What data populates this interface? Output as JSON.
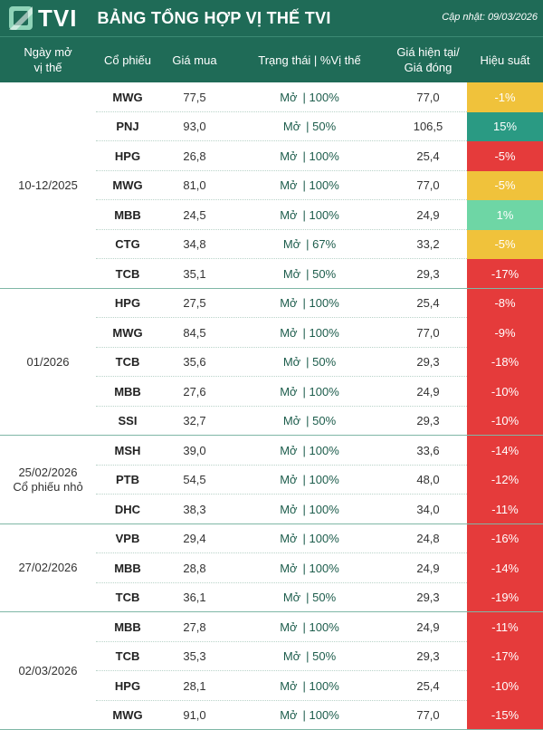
{
  "header": {
    "logo_text": "TVI",
    "title": "BẢNG TỔNG HỢP VỊ THẾ TVI",
    "updated": "Cập nhật: 09/03/2026"
  },
  "columns": {
    "date": [
      "Ngày mở",
      "vị thế"
    ],
    "ticker": "Cổ phiếu",
    "buy": "Giá mua",
    "status": "Trạng thái | %Vị thế",
    "current": [
      "Giá hiện tại/",
      "Giá đóng"
    ],
    "perf": "Hiệu suất"
  },
  "colors": {
    "header_bg": "#1f6b57",
    "red": "#e53b3b",
    "yellow": "#f0c23b",
    "teal": "#2a9a83",
    "lightgreen": "#6ed6a5"
  },
  "groups": [
    {
      "date": [
        "10-12/2025"
      ],
      "rows": [
        {
          "ticker": "MWG",
          "buy": "77,5",
          "status": "Mở",
          "pct": "| 100%",
          "current": "77,0",
          "perf": "-1%",
          "color": "yellow"
        },
        {
          "ticker": "PNJ",
          "buy": "93,0",
          "status": "Mở",
          "pct": "| 50%",
          "current": "106,5",
          "perf": "15%",
          "color": "teal"
        },
        {
          "ticker": "HPG",
          "buy": "26,8",
          "status": "Mở",
          "pct": "| 100%",
          "current": "25,4",
          "perf": "-5%",
          "color": "red"
        },
        {
          "ticker": "MWG",
          "buy": "81,0",
          "status": "Mở",
          "pct": "| 100%",
          "current": "77,0",
          "perf": "-5%",
          "color": "yellow"
        },
        {
          "ticker": "MBB",
          "buy": "24,5",
          "status": "Mở",
          "pct": "| 100%",
          "current": "24,9",
          "perf": "1%",
          "color": "lightgreen"
        },
        {
          "ticker": "CTG",
          "buy": "34,8",
          "status": "Mở",
          "pct": "| 67%",
          "current": "33,2",
          "perf": "-5%",
          "color": "yellow"
        },
        {
          "ticker": "TCB",
          "buy": "35,1",
          "status": "Mở",
          "pct": "| 50%",
          "current": "29,3",
          "perf": "-17%",
          "color": "red"
        }
      ]
    },
    {
      "date": [
        "01/2026"
      ],
      "rows": [
        {
          "ticker": "HPG",
          "buy": "27,5",
          "status": "Mở",
          "pct": "| 100%",
          "current": "25,4",
          "perf": "-8%",
          "color": "red"
        },
        {
          "ticker": "MWG",
          "buy": "84,5",
          "status": "Mở",
          "pct": "| 100%",
          "current": "77,0",
          "perf": "-9%",
          "color": "red"
        },
        {
          "ticker": "TCB",
          "buy": "35,6",
          "status": "Mở",
          "pct": "| 50%",
          "current": "29,3",
          "perf": "-18%",
          "color": "red"
        },
        {
          "ticker": "MBB",
          "buy": "27,6",
          "status": "Mở",
          "pct": "| 100%",
          "current": "24,9",
          "perf": "-10%",
          "color": "red"
        },
        {
          "ticker": "SSI",
          "buy": "32,7",
          "status": "Mở",
          "pct": "| 50%",
          "current": "29,3",
          "perf": "-10%",
          "color": "red"
        }
      ]
    },
    {
      "date": [
        "25/02/2026",
        "Cổ phiếu nhỏ"
      ],
      "rows": [
        {
          "ticker": "MSH",
          "buy": "39,0",
          "status": "Mở",
          "pct": "| 100%",
          "current": "33,6",
          "perf": "-14%",
          "color": "red"
        },
        {
          "ticker": "PTB",
          "buy": "54,5",
          "status": "Mở",
          "pct": "| 100%",
          "current": "48,0",
          "perf": "-12%",
          "color": "red"
        },
        {
          "ticker": "DHC",
          "buy": "38,3",
          "status": "Mở",
          "pct": "| 100%",
          "current": "34,0",
          "perf": "-11%",
          "color": "red"
        }
      ]
    },
    {
      "date": [
        "27/02/2026"
      ],
      "rows": [
        {
          "ticker": "VPB",
          "buy": "29,4",
          "status": "Mở",
          "pct": "| 100%",
          "current": "24,8",
          "perf": "-16%",
          "color": "red"
        },
        {
          "ticker": "MBB",
          "buy": "28,8",
          "status": "Mở",
          "pct": "| 100%",
          "current": "24,9",
          "perf": "-14%",
          "color": "red"
        },
        {
          "ticker": "TCB",
          "buy": "36,1",
          "status": "Mở",
          "pct": "| 50%",
          "current": "29,3",
          "perf": "-19%",
          "color": "red"
        }
      ]
    },
    {
      "date": [
        "02/03/2026"
      ],
      "rows": [
        {
          "ticker": "MBB",
          "buy": "27,8",
          "status": "Mở",
          "pct": "| 100%",
          "current": "24,9",
          "perf": "-11%",
          "color": "red"
        },
        {
          "ticker": "TCB",
          "buy": "35,3",
          "status": "Mở",
          "pct": "| 50%",
          "current": "29,3",
          "perf": "-17%",
          "color": "red"
        },
        {
          "ticker": "HPG",
          "buy": "28,1",
          "status": "Mở",
          "pct": "| 100%",
          "current": "25,4",
          "perf": "-10%",
          "color": "red"
        },
        {
          "ticker": "MWG",
          "buy": "91,0",
          "status": "Mở",
          "pct": "| 100%",
          "current": "77,0",
          "perf": "-15%",
          "color": "red"
        }
      ]
    }
  ]
}
